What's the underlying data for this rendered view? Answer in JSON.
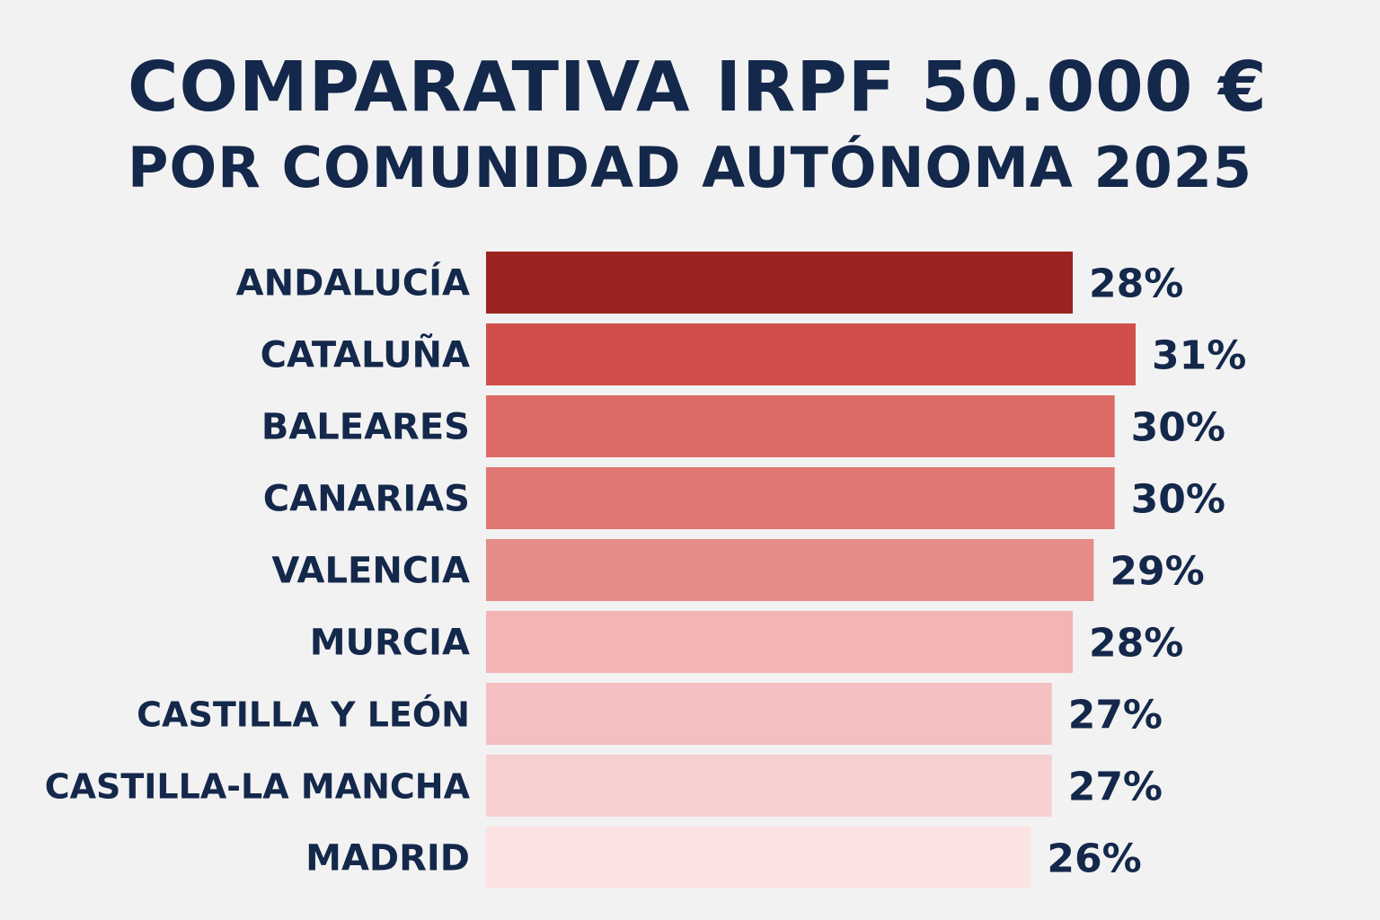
{
  "title": "COMPARATIVA IRPF 50.000 €",
  "subtitle": "POR COMUNIDAD AUTÓNOMA 2025",
  "chart_data": {
    "type": "bar",
    "orientation": "horizontal",
    "title": "COMPARATIVA IRPF 50.000 €",
    "subtitle": "POR COMUNIDAD AUTÓNOMA 2025",
    "categories": [
      "ANDALUCÍA",
      "CATALUÑA",
      "BALEARES",
      "CANARIAS",
      "VALENCIA",
      "MURCIA",
      "CASTILLA Y LEÓN",
      "CASTILLA-LA MANCHA",
      "MADRID"
    ],
    "values": [
      28,
      31,
      30,
      30,
      29,
      28,
      27,
      27,
      26
    ],
    "value_labels": [
      "28%",
      "31%",
      "30%",
      "30%",
      "29%",
      "28%",
      "27%",
      "27%",
      "26%"
    ],
    "bar_colors": [
      "#9b2420",
      "#d14f4b",
      "#dc6b67",
      "#e07773",
      "#e68c87",
      "#f2b4b5",
      "#f3bfc0",
      "#f6d0d0",
      "#fbe3e4"
    ],
    "xlabel": "",
    "ylabel": "",
    "grid": false,
    "legend": false
  },
  "colors": {
    "background": "#f2f2f2",
    "text": "#14284b"
  }
}
